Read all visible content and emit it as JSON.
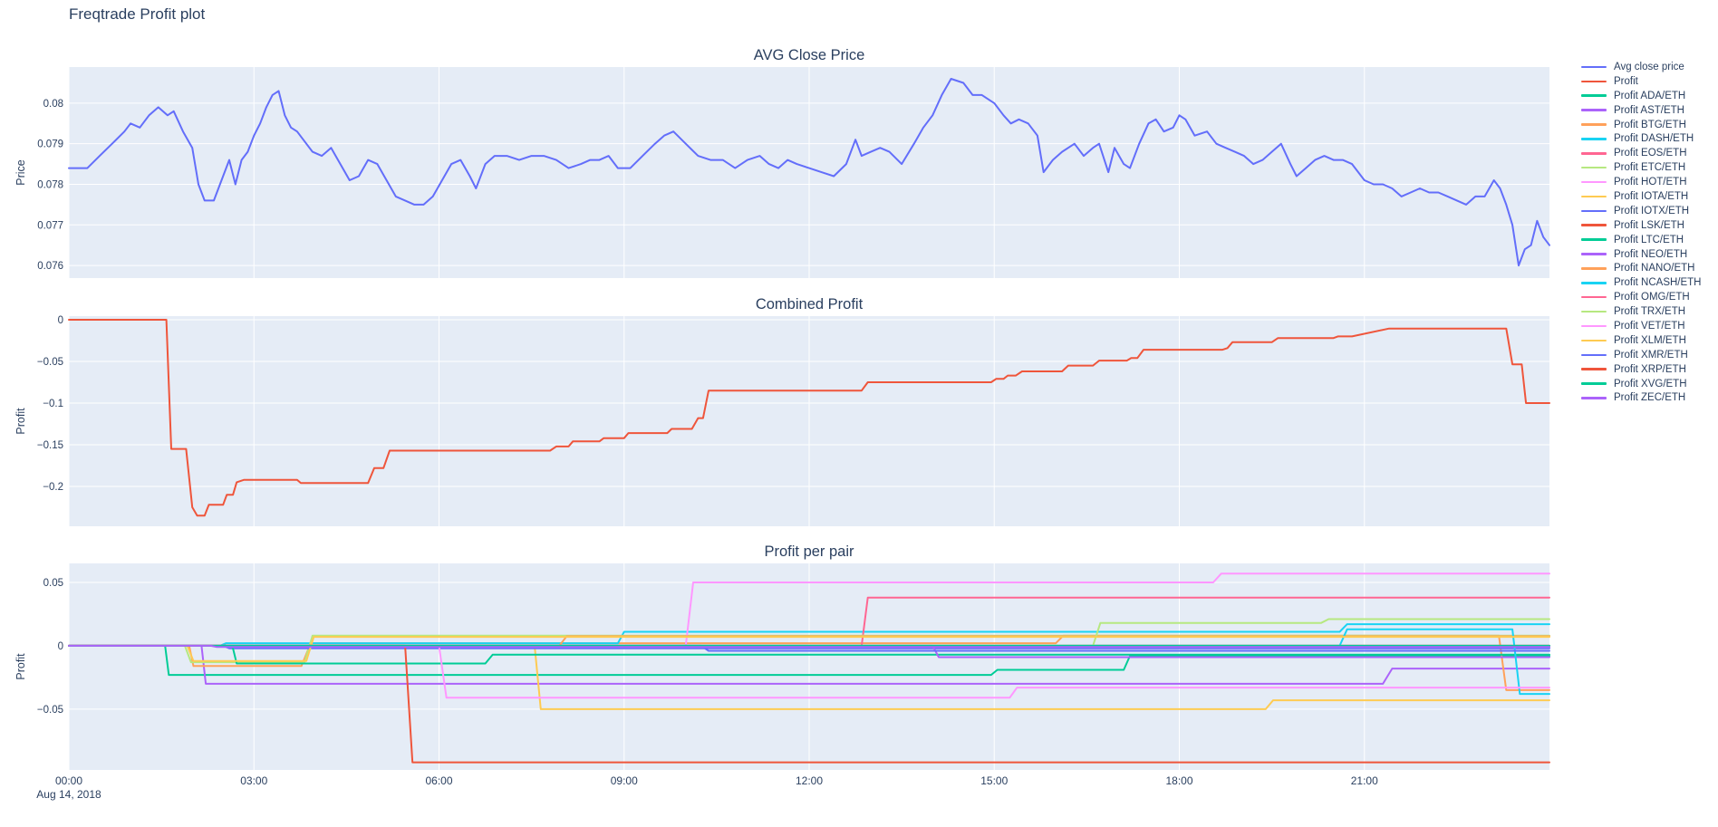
{
  "page": {
    "title": "Freqtrade Profit plot"
  },
  "xaxis": {
    "tick_labels": [
      "00:00",
      "03:00",
      "06:00",
      "09:00",
      "12:00",
      "15:00",
      "18:00",
      "21:00"
    ],
    "tick_hours": [
      0,
      3,
      6,
      9,
      12,
      15,
      18,
      21
    ],
    "date_label": "Aug 14, 2018",
    "range_hours": [
      0,
      24
    ]
  },
  "legend": {
    "items": [
      {
        "label": "Avg close price",
        "color": "#636efa"
      },
      {
        "label": "Profit",
        "color": "#EF553B"
      },
      {
        "label": "Profit ADA/ETH",
        "color": "#00cc96"
      },
      {
        "label": "Profit AST/ETH",
        "color": "#ab63fa"
      },
      {
        "label": "Profit BTG/ETH",
        "color": "#FFA15A"
      },
      {
        "label": "Profit DASH/ETH",
        "color": "#19d3f3"
      },
      {
        "label": "Profit EOS/ETH",
        "color": "#FF6692"
      },
      {
        "label": "Profit ETC/ETH",
        "color": "#B6E880"
      },
      {
        "label": "Profit HOT/ETH",
        "color": "#FF97FF"
      },
      {
        "label": "Profit IOTA/ETH",
        "color": "#FECB52"
      },
      {
        "label": "Profit IOTX/ETH",
        "color": "#636efa"
      },
      {
        "label": "Profit LSK/ETH",
        "color": "#EF553B"
      },
      {
        "label": "Profit LTC/ETH",
        "color": "#00cc96"
      },
      {
        "label": "Profit NEO/ETH",
        "color": "#ab63fa"
      },
      {
        "label": "Profit NANO/ETH",
        "color": "#FFA15A"
      },
      {
        "label": "Profit NCASH/ETH",
        "color": "#19d3f3"
      },
      {
        "label": "Profit OMG/ETH",
        "color": "#FF6692"
      },
      {
        "label": "Profit TRX/ETH",
        "color": "#B6E880"
      },
      {
        "label": "Profit VET/ETH",
        "color": "#FF97FF"
      },
      {
        "label": "Profit XLM/ETH",
        "color": "#FECB52"
      },
      {
        "label": "Profit XMR/ETH",
        "color": "#636efa"
      },
      {
        "label": "Profit XRP/ETH",
        "color": "#EF553B"
      },
      {
        "label": "Profit XVG/ETH",
        "color": "#00cc96"
      },
      {
        "label": "Profit ZEC/ETH",
        "color": "#ab63fa"
      }
    ]
  },
  "chart_data": [
    {
      "type": "line",
      "title": "AVG Close Price",
      "ylabel": "Price",
      "ylim": [
        0.07569,
        0.08089
      ],
      "yticks": {
        "values": [
          0.08,
          0.079,
          0.078,
          0.077,
          0.076
        ],
        "labels": [
          "0.08",
          "0.079",
          "0.078",
          "0.077",
          "0.076"
        ]
      },
      "series": [
        {
          "name": "Avg close price",
          "color": "#636efa",
          "x": [
            0,
            0.3,
            0.5,
            0.7,
            0.9,
            1.0,
            1.15,
            1.3,
            1.45,
            1.6,
            1.7,
            1.85,
            2.0,
            2.1,
            2.2,
            2.35,
            2.5,
            2.6,
            2.7,
            2.8,
            2.9,
            3.0,
            3.1,
            3.2,
            3.3,
            3.4,
            3.5,
            3.6,
            3.7,
            3.8,
            3.95,
            4.1,
            4.25,
            4.4,
            4.55,
            4.7,
            4.85,
            5.0,
            5.15,
            5.3,
            5.45,
            5.6,
            5.75,
            5.9,
            6.05,
            6.2,
            6.35,
            6.5,
            6.6,
            6.75,
            6.9,
            7.1,
            7.3,
            7.5,
            7.7,
            7.9,
            8.1,
            8.3,
            8.45,
            8.6,
            8.75,
            8.9,
            9.1,
            9.3,
            9.5,
            9.65,
            9.8,
            10.0,
            10.2,
            10.4,
            10.6,
            10.8,
            11.0,
            11.2,
            11.35,
            11.5,
            11.65,
            11.8,
            12.0,
            12.2,
            12.4,
            12.6,
            12.75,
            12.85,
            13.0,
            13.15,
            13.3,
            13.5,
            13.7,
            13.85,
            14.0,
            14.15,
            14.3,
            14.5,
            14.65,
            14.8,
            15.0,
            15.15,
            15.27,
            15.4,
            15.55,
            15.7,
            15.8,
            15.95,
            16.1,
            16.3,
            16.45,
            16.6,
            16.7,
            16.85,
            16.95,
            17.1,
            17.2,
            17.35,
            17.5,
            17.62,
            17.75,
            17.9,
            18.0,
            18.1,
            18.25,
            18.45,
            18.6,
            18.75,
            18.9,
            19.05,
            19.2,
            19.35,
            19.5,
            19.65,
            19.8,
            19.9,
            20.05,
            20.2,
            20.35,
            20.5,
            20.65,
            20.8,
            21.0,
            21.15,
            21.3,
            21.45,
            21.6,
            21.75,
            21.9,
            22.05,
            22.2,
            22.35,
            22.5,
            22.65,
            22.8,
            22.95,
            23.1,
            23.2,
            23.3,
            23.4,
            23.5,
            23.6,
            23.7,
            23.8,
            23.9,
            24
          ],
          "y": [
            0.0784,
            0.0784,
            0.0787,
            0.079,
            0.0793,
            0.0795,
            0.0794,
            0.0797,
            0.0799,
            0.0797,
            0.0798,
            0.0793,
            0.0789,
            0.078,
            0.0776,
            0.0776,
            0.0782,
            0.0786,
            0.078,
            0.0786,
            0.0788,
            0.0792,
            0.0795,
            0.0799,
            0.0802,
            0.0803,
            0.0797,
            0.0794,
            0.0793,
            0.0791,
            0.0788,
            0.0787,
            0.0789,
            0.0785,
            0.0781,
            0.0782,
            0.0786,
            0.0785,
            0.0781,
            0.0777,
            0.0776,
            0.0775,
            0.0775,
            0.0777,
            0.0781,
            0.0785,
            0.0786,
            0.0782,
            0.0779,
            0.0785,
            0.0787,
            0.0787,
            0.0786,
            0.0787,
            0.0787,
            0.0786,
            0.0784,
            0.0785,
            0.0786,
            0.0786,
            0.0787,
            0.0784,
            0.0784,
            0.0787,
            0.079,
            0.0792,
            0.0793,
            0.079,
            0.0787,
            0.0786,
            0.0786,
            0.0784,
            0.0786,
            0.0787,
            0.0785,
            0.0784,
            0.0786,
            0.0785,
            0.0784,
            0.0783,
            0.0782,
            0.0785,
            0.0791,
            0.0787,
            0.0788,
            0.0789,
            0.0788,
            0.0785,
            0.079,
            0.0794,
            0.0797,
            0.0802,
            0.0806,
            0.0805,
            0.0802,
            0.0802,
            0.08,
            0.0797,
            0.0795,
            0.0796,
            0.0795,
            0.0792,
            0.0783,
            0.0786,
            0.0788,
            0.079,
            0.0787,
            0.0789,
            0.079,
            0.0783,
            0.0789,
            0.0785,
            0.0784,
            0.079,
            0.0795,
            0.0796,
            0.0793,
            0.0794,
            0.0797,
            0.0796,
            0.0792,
            0.0793,
            0.079,
            0.0789,
            0.0788,
            0.0787,
            0.0785,
            0.0786,
            0.0788,
            0.079,
            0.0785,
            0.0782,
            0.0784,
            0.0786,
            0.0787,
            0.0786,
            0.0786,
            0.0785,
            0.0781,
            0.078,
            0.078,
            0.0779,
            0.0777,
            0.0778,
            0.0779,
            0.0778,
            0.0778,
            0.0777,
            0.0776,
            0.0775,
            0.0777,
            0.0777,
            0.0781,
            0.0779,
            0.0775,
            0.077,
            0.076,
            0.0764,
            0.0765,
            0.0771,
            0.0767,
            0.0765
          ]
        }
      ]
    },
    {
      "type": "line",
      "title": "Combined Profit",
      "ylabel": "Profit",
      "ylim": [
        -0.2478,
        0.00435
      ],
      "yticks": {
        "values": [
          0,
          -0.05,
          -0.1,
          -0.15,
          -0.2
        ],
        "labels": [
          "0",
          "−0.05",
          "−0.1",
          "−0.15",
          "−0.2"
        ]
      },
      "series": [
        {
          "name": "Profit",
          "color": "#EF553B",
          "x": [
            0,
            1.58,
            1.66,
            1.9,
            2.0,
            2.08,
            2.2,
            2.27,
            2.5,
            2.56,
            2.66,
            2.72,
            2.84,
            3.7,
            3.76,
            4.85,
            4.95,
            5.1,
            5.2,
            7.8,
            7.9,
            8.1,
            8.17,
            8.6,
            8.67,
            9.0,
            9.07,
            9.7,
            9.77,
            10.1,
            10.2,
            10.28,
            10.37,
            12.85,
            12.95,
            14.95,
            15.03,
            15.15,
            15.22,
            15.35,
            15.45,
            16.1,
            16.2,
            16.6,
            16.7,
            17.15,
            17.22,
            17.32,
            17.42,
            18.7,
            18.78,
            18.86,
            19.5,
            19.6,
            20.5,
            20.57,
            20.8,
            21.4,
            21.5,
            23.3,
            23.4,
            23.55,
            23.62,
            24
          ],
          "y": [
            0,
            0,
            -0.155,
            -0.155,
            -0.225,
            -0.235,
            -0.235,
            -0.222,
            -0.222,
            -0.21,
            -0.21,
            -0.195,
            -0.192,
            -0.192,
            -0.196,
            -0.196,
            -0.178,
            -0.178,
            -0.157,
            -0.157,
            -0.152,
            -0.152,
            -0.146,
            -0.146,
            -0.142,
            -0.142,
            -0.136,
            -0.136,
            -0.131,
            -0.131,
            -0.118,
            -0.118,
            -0.085,
            -0.085,
            -0.075,
            -0.075,
            -0.071,
            -0.071,
            -0.067,
            -0.067,
            -0.062,
            -0.062,
            -0.055,
            -0.055,
            -0.049,
            -0.049,
            -0.046,
            -0.046,
            -0.036,
            -0.036,
            -0.034,
            -0.027,
            -0.027,
            -0.022,
            -0.022,
            -0.02,
            -0.02,
            -0.0105,
            -0.0105,
            -0.0105,
            -0.0535,
            -0.0535,
            -0.1,
            -0.1
          ]
        }
      ]
    },
    {
      "type": "line",
      "title": "Profit per pair",
      "ylabel": "Profit",
      "ylim": [
        -0.098,
        0.065
      ],
      "yticks": {
        "values": [
          0.05,
          0,
          -0.05
        ],
        "labels": [
          "0.05",
          "0",
          "−0.05"
        ]
      },
      "series": [
        {
          "name": "Profit ADA/ETH",
          "color": "#00cc96",
          "x": [
            0,
            1.56,
            1.62,
            14.95,
            15.05,
            17.1,
            17.2,
            24
          ],
          "y": [
            0,
            0,
            -0.023,
            -0.023,
            -0.019,
            -0.019,
            -0.008,
            -0.008
          ]
        },
        {
          "name": "Profit AST/ETH",
          "color": "#ab63fa",
          "x": [
            0,
            2.15,
            2.22,
            21.3,
            21.45,
            24
          ],
          "y": [
            0,
            0,
            -0.03,
            -0.03,
            -0.018,
            -0.018
          ]
        },
        {
          "name": "Profit BTG/ETH",
          "color": "#FFA15A",
          "x": [
            0,
            1.95,
            2.02,
            3.77,
            3.92,
            16.0,
            16.12,
            23.18,
            23.3,
            24
          ],
          "y": [
            0,
            0,
            -0.016,
            -0.016,
            0.002,
            0.002,
            0.008,
            0.008,
            -0.035,
            -0.035
          ]
        },
        {
          "name": "Profit DASH/ETH",
          "color": "#19d3f3",
          "x": [
            0,
            2.45,
            2.55,
            8.9,
            9.0,
            20.6,
            20.72,
            24
          ],
          "y": [
            0,
            0,
            0.002,
            0.002,
            0.011,
            0.011,
            0.017,
            0.017
          ]
        },
        {
          "name": "Profit EOS/ETH",
          "color": "#FF6692",
          "x": [
            0,
            12.85,
            12.95,
            24
          ],
          "y": [
            0,
            0,
            0.038,
            0.038
          ]
        },
        {
          "name": "Profit ETC/ETH",
          "color": "#B6E880",
          "x": [
            0,
            1.88,
            1.98,
            3.82,
            3.95,
            24
          ],
          "y": [
            0,
            0,
            -0.013,
            -0.013,
            0.008,
            0.008
          ]
        },
        {
          "name": "Profit HOT/ETH",
          "color": "#FF97FF",
          "x": [
            0,
            10.0,
            10.12,
            18.55,
            18.68,
            24
          ],
          "y": [
            0,
            0,
            0.05,
            0.05,
            0.057,
            0.057
          ]
        },
        {
          "name": "Profit IOTA/ETH",
          "color": "#FECB52",
          "x": [
            0,
            7.55,
            7.65,
            19.4,
            19.52,
            24
          ],
          "y": [
            0,
            0,
            -0.05,
            -0.05,
            -0.043,
            -0.043
          ]
        },
        {
          "name": "Profit IOTX/ETH",
          "color": "#636efa",
          "x": [
            0,
            2.5,
            2.6,
            24
          ],
          "y": [
            0,
            0,
            -0.002,
            -0.002
          ]
        },
        {
          "name": "Profit LSK/ETH",
          "color": "#EF553B",
          "x": [
            0,
            24
          ],
          "y": [
            0,
            0
          ]
        },
        {
          "name": "Profit LTC/ETH",
          "color": "#00cc96",
          "x": [
            0,
            2.65,
            2.72,
            6.75,
            6.87,
            24
          ],
          "y": [
            0,
            0,
            -0.014,
            -0.014,
            -0.007,
            -0.007
          ]
        },
        {
          "name": "Profit NEO/ETH",
          "color": "#ab63fa",
          "x": [
            0,
            14.0,
            14.1,
            24
          ],
          "y": [
            0,
            0,
            -0.009,
            -0.009
          ]
        },
        {
          "name": "Profit NANO/ETH",
          "color": "#FFA15A",
          "x": [
            0,
            7.95,
            8.07,
            24
          ],
          "y": [
            0,
            0,
            0.0075,
            0.0075
          ]
        },
        {
          "name": "Profit NCASH/ETH",
          "color": "#19d3f3",
          "x": [
            0,
            20.6,
            20.72,
            23.4,
            23.52,
            24
          ],
          "y": [
            0,
            0,
            0.013,
            0.013,
            -0.038,
            -0.038
          ]
        },
        {
          "name": "Profit OMG/ETH",
          "color": "#FF6692",
          "x": [
            0,
            24
          ],
          "y": [
            0,
            0
          ]
        },
        {
          "name": "Profit TRX/ETH",
          "color": "#B6E880",
          "x": [
            0,
            16.6,
            16.72,
            20.3,
            20.42,
            24
          ],
          "y": [
            0,
            0,
            0.018,
            0.018,
            0.021,
            0.021
          ]
        },
        {
          "name": "Profit VET/ETH",
          "color": "#FF97FF",
          "x": [
            0,
            6.0,
            6.12,
            15.25,
            15.37,
            24
          ],
          "y": [
            0,
            0,
            -0.041,
            -0.041,
            -0.033,
            -0.033
          ]
        },
        {
          "name": "Profit XLM/ETH",
          "color": "#FECB52",
          "x": [
            0,
            1.92,
            2.02,
            3.85,
            3.97,
            24
          ],
          "y": [
            0,
            0,
            -0.012,
            -0.012,
            0.007,
            0.007
          ]
        },
        {
          "name": "Profit XMR/ETH",
          "color": "#636efa",
          "x": [
            0,
            10.25,
            10.37,
            24
          ],
          "y": [
            0,
            0,
            -0.004,
            -0.004
          ]
        },
        {
          "name": "Profit XRP/ETH",
          "color": "#EF553B",
          "x": [
            0,
            5.45,
            5.57,
            24
          ],
          "y": [
            0,
            0,
            -0.092,
            -0.092
          ]
        },
        {
          "name": "Profit XVG/ETH",
          "color": "#00cc96",
          "x": [
            0,
            24
          ],
          "y": [
            0,
            0
          ]
        },
        {
          "name": "Profit ZEC/ETH",
          "color": "#ab63fa",
          "x": [
            0,
            2.3,
            2.4,
            24
          ],
          "y": [
            0,
            0,
            -0.001,
            -0.001
          ]
        }
      ]
    }
  ]
}
